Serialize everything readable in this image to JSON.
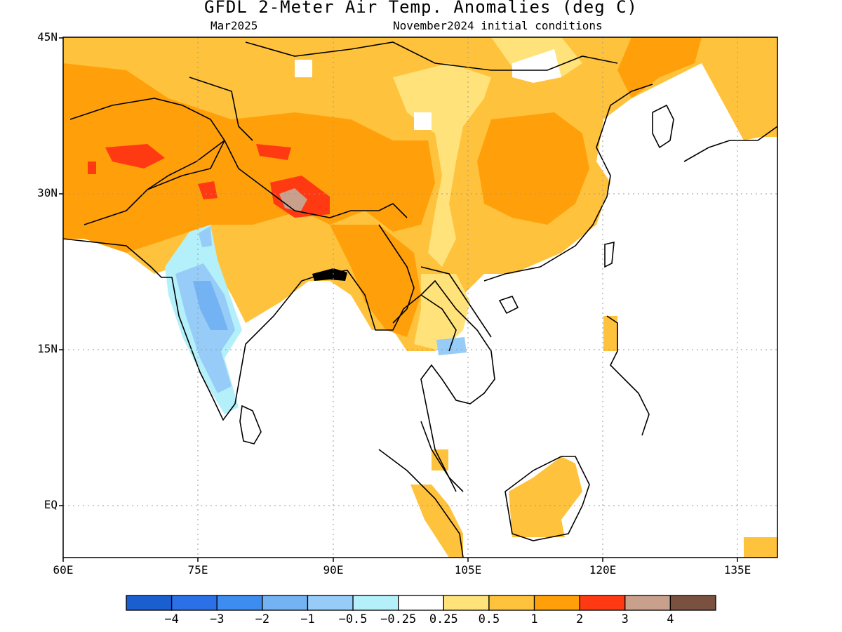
{
  "title": "GFDL 2-Meter Air Temp. Anomalies (deg C)",
  "subtitle_left": "Mar2025",
  "subtitle_right": "November2024 initial conditions",
  "lat_ticks": [
    "45N",
    "30N",
    "15N",
    "EQ"
  ],
  "lon_ticks": [
    "60E",
    "75E",
    "90E",
    "105E",
    "120E",
    "135E"
  ],
  "colorbar": {
    "labels": [
      "-4",
      "-3",
      "-2",
      "-1",
      "-0.5",
      "-0.25",
      "0.25",
      "0.5",
      "1",
      "2",
      "3",
      "4"
    ],
    "colors": [
      "#1a5fd0",
      "#2b70e6",
      "#3d8cf0",
      "#73b3f3",
      "#96ccf7",
      "#b4f0fa",
      "#ffffff",
      "#ffe27a",
      "#ffc23c",
      "#ffa00a",
      "#ff3a12",
      "#c8a08c",
      "#7a5140"
    ]
  },
  "palette": {
    "orange": "#ffa00a",
    "light_orange": "#ffc23c",
    "yellow": "#ffe27a",
    "red": "#ff3a12",
    "pink": "#c8a08c",
    "light_blue": "#96ccf7",
    "mid_blue": "#73b3f3",
    "pale_blue": "#b4f0fa"
  }
}
